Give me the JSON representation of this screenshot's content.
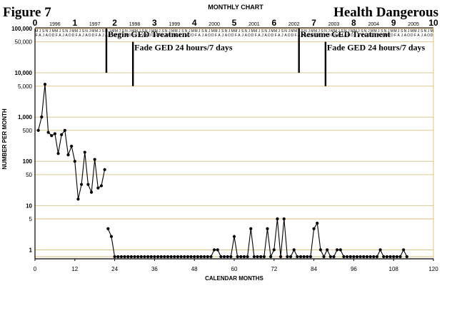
{
  "figure_label": "Figure 7",
  "status_label": "Health Dangerous",
  "chart_data": {
    "type": "line",
    "title": "MONTHLY CHART",
    "xlabel": "CALENDAR MONTHS",
    "ylabel": "NUMBER PER MONTH",
    "y_scale": "log",
    "ylim": [
      0.7,
      100000
    ],
    "xlim": [
      0,
      120
    ],
    "x_ticks": [
      0,
      12,
      24,
      36,
      48,
      60,
      72,
      84,
      96,
      108,
      120
    ],
    "y_ticks": [
      {
        "value": 1,
        "label": "1",
        "bold": true
      },
      {
        "value": 5,
        "label": "5",
        "bold": false
      },
      {
        "value": 10,
        "label": "10",
        "bold": true
      },
      {
        "value": 50,
        "label": "50",
        "bold": false
      },
      {
        "value": 100,
        "label": "100",
        "bold": true
      },
      {
        "value": 500,
        "label": "500",
        "bold": false
      },
      {
        "value": 1000,
        "label": "1,000",
        "bold": true
      },
      {
        "value": 5000,
        "label": "5,000",
        "bold": false
      },
      {
        "value": 10000,
        "label": "10,000",
        "bold": true
      },
      {
        "value": 50000,
        "label": "50,000",
        "bold": false
      },
      {
        "value": 100000,
        "label": "100,000",
        "bold": true
      }
    ],
    "year_index_labels": [
      "0",
      "1",
      "2",
      "3",
      "4",
      "5",
      "6",
      "7",
      "8",
      "9",
      "10"
    ],
    "calendar_years": [
      {
        "label": "1996",
        "month": 6
      },
      {
        "label": "1997",
        "month": 18
      },
      {
        "label": "1998",
        "month": 30
      },
      {
        "label": "1999",
        "month": 42
      },
      {
        "label": "2000",
        "month": 54
      },
      {
        "label": "2001",
        "month": 66
      },
      {
        "label": "2002",
        "month": 78
      },
      {
        "label": "2003",
        "month": 90
      },
      {
        "label": "2004",
        "month": 102
      },
      {
        "label": "2005",
        "month": 114
      }
    ],
    "month_letters_top": [
      "M",
      "J",
      "S",
      "N",
      "J",
      "M",
      "M",
      "J",
      "S",
      "N",
      "J",
      "M"
    ],
    "month_letters_bottom": [
      "F",
      "A",
      "J",
      "A",
      "O",
      "D",
      "F",
      "A",
      "J",
      "A",
      "O",
      "D"
    ],
    "grid": "horizontal",
    "segments": [
      {
        "points": [
          [
            1,
            500
          ],
          [
            2,
            1000
          ],
          [
            3,
            5500
          ],
          [
            4,
            450
          ],
          [
            5,
            380
          ],
          [
            6,
            420
          ],
          [
            7,
            150
          ],
          [
            8,
            400
          ],
          [
            9,
            500
          ],
          [
            10,
            140
          ],
          [
            11,
            220
          ],
          [
            12,
            100
          ],
          [
            13,
            14
          ],
          [
            14,
            30
          ],
          [
            15,
            160
          ],
          [
            16,
            30
          ],
          [
            17,
            20
          ],
          [
            18,
            110
          ],
          [
            19,
            25
          ],
          [
            20,
            28
          ],
          [
            21,
            65
          ]
        ]
      },
      {
        "points": [
          [
            22,
            3
          ],
          [
            23,
            2
          ],
          [
            24,
            0.7
          ],
          [
            25,
            0.7
          ],
          [
            26,
            0.7
          ],
          [
            27,
            0.7
          ],
          [
            28,
            0.7
          ],
          [
            29,
            0.7
          ],
          [
            30,
            0.7
          ],
          [
            31,
            0.7
          ],
          [
            32,
            0.7
          ],
          [
            33,
            0.7
          ],
          [
            34,
            0.7
          ],
          [
            35,
            0.7
          ],
          [
            36,
            0.7
          ],
          [
            37,
            0.7
          ],
          [
            38,
            0.7
          ],
          [
            39,
            0.7
          ],
          [
            40,
            0.7
          ],
          [
            41,
            0.7
          ],
          [
            42,
            0.7
          ],
          [
            43,
            0.7
          ],
          [
            44,
            0.7
          ],
          [
            45,
            0.7
          ],
          [
            46,
            0.7
          ],
          [
            47,
            0.7
          ],
          [
            48,
            0.7
          ],
          [
            49,
            0.7
          ],
          [
            50,
            0.7
          ],
          [
            51,
            0.7
          ],
          [
            52,
            0.7
          ],
          [
            53,
            0.7
          ],
          [
            54,
            1
          ],
          [
            55,
            1
          ],
          [
            56,
            0.7
          ],
          [
            57,
            0.7
          ],
          [
            58,
            0.7
          ],
          [
            59,
            0.7
          ],
          [
            60,
            2
          ],
          [
            61,
            0.7
          ],
          [
            62,
            0.7
          ],
          [
            63,
            0.7
          ],
          [
            64,
            0.7
          ],
          [
            65,
            3
          ],
          [
            66,
            0.7
          ],
          [
            67,
            0.7
          ],
          [
            68,
            0.7
          ],
          [
            69,
            0.7
          ],
          [
            70,
            3
          ],
          [
            71,
            0.7
          ],
          [
            72,
            1
          ],
          [
            73,
            5
          ],
          [
            74,
            0.7
          ],
          [
            75,
            5
          ],
          [
            76,
            0.7
          ],
          [
            77,
            0.7
          ],
          [
            78,
            1
          ],
          [
            79,
            0.7
          ],
          [
            80,
            0.7
          ],
          [
            81,
            0.7
          ],
          [
            82,
            0.7
          ],
          [
            83,
            0.7
          ],
          [
            84,
            3
          ],
          [
            85,
            4
          ],
          [
            86,
            1
          ],
          [
            87,
            0.7
          ],
          [
            88,
            1
          ],
          [
            89,
            0.7
          ],
          [
            90,
            0.7
          ],
          [
            91,
            1
          ],
          [
            92,
            1
          ],
          [
            93,
            0.7
          ],
          [
            94,
            0.7
          ],
          [
            95,
            0.7
          ],
          [
            96,
            0.7
          ],
          [
            97,
            0.7
          ],
          [
            98,
            0.7
          ],
          [
            99,
            0.7
          ],
          [
            100,
            0.7
          ],
          [
            101,
            0.7
          ],
          [
            102,
            0.7
          ],
          [
            103,
            0.7
          ],
          [
            104,
            1
          ],
          [
            105,
            0.7
          ],
          [
            106,
            0.7
          ],
          [
            107,
            0.7
          ],
          [
            108,
            0.7
          ],
          [
            109,
            0.7
          ],
          [
            110,
            0.7
          ],
          [
            111,
            1
          ],
          [
            112,
            0.7
          ]
        ]
      }
    ],
    "annotations": [
      {
        "text": "Begin GED Treatment",
        "x": 21.5,
        "y_top": 100000,
        "y_bottom": 10000
      },
      {
        "text": "Fade GED 24 hours/7 days",
        "x": 29.5,
        "y_top": 50000,
        "y_bottom": 5000
      },
      {
        "text": "Resume GED Treatment",
        "x": 79.5,
        "y_top": 100000,
        "y_bottom": 10000
      },
      {
        "text": "Fade GED 24 hours/7 days",
        "x": 87.5,
        "y_top": 50000,
        "y_bottom": 5000
      }
    ]
  }
}
